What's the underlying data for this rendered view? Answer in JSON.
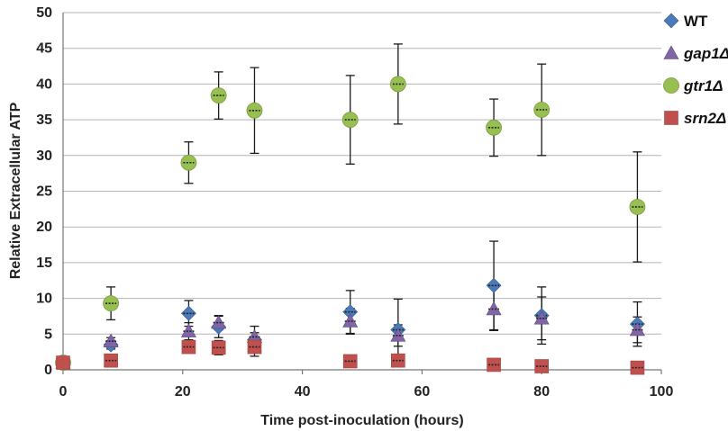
{
  "chart_data": {
    "type": "scatter",
    "xlabel": "Time post-inoculation (hours)",
    "ylabel": "Relative Extracellular ATP",
    "xlim": [
      0,
      100
    ],
    "ylim": [
      0,
      50
    ],
    "xticks": [
      0,
      20,
      40,
      60,
      80,
      100
    ],
    "yticks": [
      0,
      5,
      10,
      15,
      20,
      25,
      30,
      35,
      40,
      45,
      50
    ],
    "grid": "horizontal",
    "legend_position": "right",
    "series": [
      {
        "name": "WT",
        "marker": "diamond",
        "color": "#4a7ab8",
        "italic": false,
        "points": [
          {
            "x": 0,
            "y": 1.0,
            "err": 0
          },
          {
            "x": 8,
            "y": 3.5,
            "err": 0.6
          },
          {
            "x": 21,
            "y": 7.9,
            "err": 1.8
          },
          {
            "x": 26,
            "y": 6.0,
            "err": 1.5
          },
          {
            "x": 32,
            "y": 4.2,
            "err": 1.0
          },
          {
            "x": 48,
            "y": 8.1,
            "err": 3.0
          },
          {
            "x": 56,
            "y": 5.6,
            "err": 4.3
          },
          {
            "x": 72,
            "y": 11.8,
            "err": 6.2
          },
          {
            "x": 80,
            "y": 7.6,
            "err": 4.0
          },
          {
            "x": 96,
            "y": 6.4,
            "err": 3.1
          }
        ]
      },
      {
        "name": "gap1Δ",
        "marker": "triangle",
        "color": "#8066a6",
        "italic": true,
        "points": [
          {
            "x": 0,
            "y": 1.0,
            "err": 0
          },
          {
            "x": 8,
            "y": 4.0,
            "err": 0.5
          },
          {
            "x": 21,
            "y": 5.4,
            "err": 1.2
          },
          {
            "x": 26,
            "y": 6.6,
            "err": 1.0
          },
          {
            "x": 32,
            "y": 4.6,
            "err": 1.5
          },
          {
            "x": 48,
            "y": 6.8,
            "err": 1.8
          },
          {
            "x": 56,
            "y": 4.8,
            "err": 1.5
          },
          {
            "x": 72,
            "y": 8.5,
            "err": 3.0
          },
          {
            "x": 80,
            "y": 7.2,
            "err": 3.0
          },
          {
            "x": 96,
            "y": 5.6,
            "err": 1.8
          }
        ]
      },
      {
        "name": "gtr1Δ",
        "marker": "circle",
        "color": "#97bf52",
        "italic": true,
        "points": [
          {
            "x": 0,
            "y": 1.0,
            "err": 0
          },
          {
            "x": 8,
            "y": 9.3,
            "err": 2.3
          },
          {
            "x": 21,
            "y": 29.0,
            "err": 2.9
          },
          {
            "x": 26,
            "y": 38.4,
            "err": 3.3
          },
          {
            "x": 32,
            "y": 36.3,
            "err": 6.0
          },
          {
            "x": 48,
            "y": 35.0,
            "err": 6.2
          },
          {
            "x": 56,
            "y": 40.0,
            "err": 5.6
          },
          {
            "x": 72,
            "y": 33.9,
            "err": 4.0
          },
          {
            "x": 80,
            "y": 36.4,
            "err": 6.4
          },
          {
            "x": 96,
            "y": 22.8,
            "err": 7.7
          }
        ]
      },
      {
        "name": "srn2Δ",
        "marker": "square",
        "color": "#c0504d",
        "italic": true,
        "points": [
          {
            "x": 0,
            "y": 1.0,
            "err": 0
          },
          {
            "x": 8,
            "y": 1.3,
            "err": 0.3
          },
          {
            "x": 21,
            "y": 3.2,
            "err": 0.5
          },
          {
            "x": 26,
            "y": 3.1,
            "err": 1.0
          },
          {
            "x": 32,
            "y": 3.2,
            "err": 1.3
          },
          {
            "x": 48,
            "y": 1.2,
            "err": 0.3
          },
          {
            "x": 56,
            "y": 1.3,
            "err": 0.4
          },
          {
            "x": 72,
            "y": 0.7,
            "err": 0.3
          },
          {
            "x": 80,
            "y": 0.5,
            "err": 0.2
          },
          {
            "x": 96,
            "y": 0.3,
            "err": 0.2
          }
        ]
      }
    ]
  }
}
